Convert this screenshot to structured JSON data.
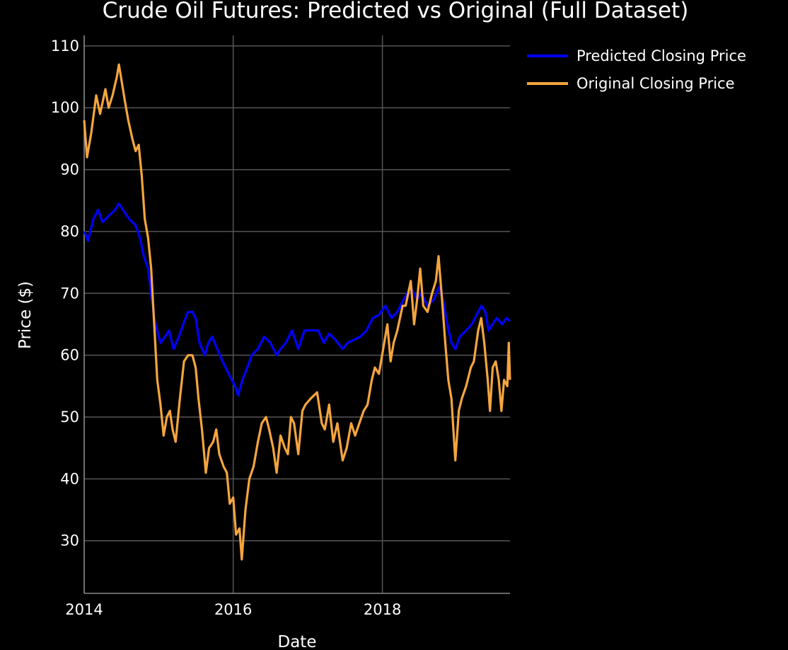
{
  "chart_data": {
    "type": "line",
    "title": "Crude Oil Futures: Predicted vs Original (Full Dataset)",
    "xlabel": "Date",
    "ylabel": "Price ($)",
    "x_range": [
      "2014-01-01",
      "2019-09-18"
    ],
    "y_range": [
      21.5,
      111.7
    ],
    "x_ticks": [
      "2014",
      "2016",
      "2018"
    ],
    "y_ticks": [
      30,
      40,
      50,
      60,
      70,
      80,
      90,
      100,
      110
    ],
    "grid": true,
    "legend_position": "top-right",
    "series": [
      {
        "name": "Predicted Closing Price",
        "color": "#0000ff",
        "points": [
          [
            "2014-01-01",
            80
          ],
          [
            "2014-01-20",
            78.5
          ],
          [
            "2014-02-15",
            82
          ],
          [
            "2014-03-10",
            83.5
          ],
          [
            "2014-04-01",
            81.5
          ],
          [
            "2014-05-01",
            82.5
          ],
          [
            "2014-06-01",
            83.5
          ],
          [
            "2014-06-20",
            84.5
          ],
          [
            "2014-07-10",
            83.5
          ],
          [
            "2014-08-10",
            82
          ],
          [
            "2014-09-10",
            81
          ],
          [
            "2014-10-01",
            79
          ],
          [
            "2014-10-20",
            76
          ],
          [
            "2014-11-10",
            74
          ],
          [
            "2014-11-25",
            70
          ],
          [
            "2014-12-10",
            66
          ],
          [
            "2014-12-25",
            64
          ],
          [
            "2015-01-10",
            62
          ],
          [
            "2015-02-01",
            63
          ],
          [
            "2015-02-20",
            64
          ],
          [
            "2015-03-15",
            61
          ],
          [
            "2015-04-10",
            63
          ],
          [
            "2015-05-01",
            65
          ],
          [
            "2015-05-25",
            67
          ],
          [
            "2015-06-15",
            67
          ],
          [
            "2015-07-01",
            66
          ],
          [
            "2015-07-20",
            62
          ],
          [
            "2015-08-15",
            60
          ],
          [
            "2015-09-01",
            62
          ],
          [
            "2015-09-20",
            63
          ],
          [
            "2015-10-15",
            61
          ],
          [
            "2015-11-10",
            59
          ],
          [
            "2015-12-10",
            57
          ],
          [
            "2016-01-10",
            55
          ],
          [
            "2016-01-25",
            53.5
          ],
          [
            "2016-02-15",
            56
          ],
          [
            "2016-03-10",
            58
          ],
          [
            "2016-04-01",
            60
          ],
          [
            "2016-05-01",
            61
          ],
          [
            "2016-06-01",
            63
          ],
          [
            "2016-07-01",
            62
          ],
          [
            "2016-08-01",
            60
          ],
          [
            "2016-08-20",
            61
          ],
          [
            "2016-09-15",
            62
          ],
          [
            "2016-10-15",
            64
          ],
          [
            "2016-11-15",
            61
          ],
          [
            "2016-12-15",
            64
          ],
          [
            "2017-01-15",
            64
          ],
          [
            "2017-02-20",
            64
          ],
          [
            "2017-03-20",
            62
          ],
          [
            "2017-04-15",
            63.5
          ],
          [
            "2017-05-15",
            62.5
          ],
          [
            "2017-06-20",
            61
          ],
          [
            "2017-07-15",
            62
          ],
          [
            "2017-08-15",
            62.5
          ],
          [
            "2017-09-15",
            63
          ],
          [
            "2017-10-15",
            64
          ],
          [
            "2017-11-15",
            66
          ],
          [
            "2017-12-15",
            66.5
          ],
          [
            "2018-01-15",
            68
          ],
          [
            "2018-02-15",
            66
          ],
          [
            "2018-03-15",
            67
          ],
          [
            "2018-04-15",
            69
          ],
          [
            "2018-05-20",
            71
          ],
          [
            "2018-06-20",
            69
          ],
          [
            "2018-07-10",
            70
          ],
          [
            "2018-08-10",
            68
          ],
          [
            "2018-09-10",
            69
          ],
          [
            "2018-10-05",
            71
          ],
          [
            "2018-10-25",
            69
          ],
          [
            "2018-11-15",
            65
          ],
          [
            "2018-12-05",
            62
          ],
          [
            "2018-12-25",
            61
          ],
          [
            "2019-01-15",
            63
          ],
          [
            "2019-02-15",
            64
          ],
          [
            "2019-03-15",
            65
          ],
          [
            "2019-04-15",
            67
          ],
          [
            "2019-05-01",
            68
          ],
          [
            "2019-05-20",
            67
          ],
          [
            "2019-06-05",
            64
          ],
          [
            "2019-06-25",
            65
          ],
          [
            "2019-07-15",
            66
          ],
          [
            "2019-08-10",
            65
          ],
          [
            "2019-09-01",
            66
          ],
          [
            "2019-09-18",
            65.5
          ]
        ]
      },
      {
        "name": "Original Closing Price",
        "color": "#f5a53e",
        "points": [
          [
            "2014-01-01",
            98
          ],
          [
            "2014-01-15",
            92
          ],
          [
            "2014-02-05",
            96
          ],
          [
            "2014-03-01",
            102
          ],
          [
            "2014-03-20",
            99
          ],
          [
            "2014-04-15",
            103
          ],
          [
            "2014-05-01",
            100
          ],
          [
            "2014-05-20",
            102
          ],
          [
            "2014-06-10",
            105
          ],
          [
            "2014-06-20",
            107
          ],
          [
            "2014-07-05",
            104
          ],
          [
            "2014-07-20",
            101
          ],
          [
            "2014-08-05",
            98
          ],
          [
            "2014-08-25",
            95
          ],
          [
            "2014-09-10",
            93
          ],
          [
            "2014-09-25",
            94
          ],
          [
            "2014-10-10",
            89
          ],
          [
            "2014-10-25",
            82
          ],
          [
            "2014-11-10",
            79
          ],
          [
            "2014-11-25",
            74
          ],
          [
            "2014-12-10",
            65
          ],
          [
            "2014-12-25",
            56
          ],
          [
            "2015-01-10",
            52
          ],
          [
            "2015-01-25",
            47
          ],
          [
            "2015-02-10",
            50
          ],
          [
            "2015-02-25",
            51
          ],
          [
            "2015-03-10",
            48
          ],
          [
            "2015-03-25",
            46
          ],
          [
            "2015-04-15",
            53
          ],
          [
            "2015-05-05",
            59
          ],
          [
            "2015-05-25",
            60
          ],
          [
            "2015-06-15",
            60
          ],
          [
            "2015-07-01",
            58
          ],
          [
            "2015-07-15",
            53
          ],
          [
            "2015-08-01",
            48
          ],
          [
            "2015-08-20",
            41
          ],
          [
            "2015-09-05",
            45
          ],
          [
            "2015-09-25",
            46
          ],
          [
            "2015-10-10",
            48
          ],
          [
            "2015-10-25",
            44
          ],
          [
            "2015-11-15",
            42
          ],
          [
            "2015-12-01",
            41
          ],
          [
            "2015-12-15",
            36
          ],
          [
            "2016-01-01",
            37
          ],
          [
            "2016-01-15",
            31
          ],
          [
            "2016-02-01",
            32
          ],
          [
            "2016-02-12",
            27
          ],
          [
            "2016-03-01",
            35
          ],
          [
            "2016-03-20",
            40
          ],
          [
            "2016-04-10",
            42
          ],
          [
            "2016-05-01",
            46
          ],
          [
            "2016-05-20",
            49
          ],
          [
            "2016-06-10",
            50
          ],
          [
            "2016-06-25",
            48
          ],
          [
            "2016-07-15",
            45
          ],
          [
            "2016-08-01",
            41
          ],
          [
            "2016-08-20",
            47
          ],
          [
            "2016-09-10",
            45
          ],
          [
            "2016-09-25",
            44
          ],
          [
            "2016-10-10",
            50
          ],
          [
            "2016-10-25",
            49
          ],
          [
            "2016-11-15",
            44
          ],
          [
            "2016-12-05",
            51
          ],
          [
            "2016-12-20",
            52
          ],
          [
            "2017-01-15",
            53
          ],
          [
            "2017-02-15",
            54
          ],
          [
            "2017-03-10",
            49
          ],
          [
            "2017-03-25",
            48
          ],
          [
            "2017-04-15",
            52
          ],
          [
            "2017-05-05",
            46
          ],
          [
            "2017-05-25",
            49
          ],
          [
            "2017-06-20",
            43
          ],
          [
            "2017-07-10",
            45
          ],
          [
            "2017-08-01",
            49
          ],
          [
            "2017-08-20",
            47
          ],
          [
            "2017-09-10",
            49
          ],
          [
            "2017-10-01",
            51
          ],
          [
            "2017-10-20",
            52
          ],
          [
            "2017-11-10",
            56
          ],
          [
            "2017-11-25",
            58
          ],
          [
            "2017-12-15",
            57
          ],
          [
            "2018-01-10",
            62
          ],
          [
            "2018-01-25",
            65
          ],
          [
            "2018-02-10",
            59
          ],
          [
            "2018-02-25",
            62
          ],
          [
            "2018-03-15",
            64
          ],
          [
            "2018-04-10",
            68
          ],
          [
            "2018-04-25",
            68
          ],
          [
            "2018-05-20",
            72
          ],
          [
            "2018-06-05",
            65
          ],
          [
            "2018-06-20",
            69
          ],
          [
            "2018-07-05",
            74
          ],
          [
            "2018-07-20",
            68
          ],
          [
            "2018-08-10",
            67
          ],
          [
            "2018-09-01",
            70
          ],
          [
            "2018-09-20",
            72
          ],
          [
            "2018-10-03",
            76
          ],
          [
            "2018-10-20",
            69
          ],
          [
            "2018-11-05",
            62
          ],
          [
            "2018-11-20",
            56
          ],
          [
            "2018-12-05",
            53
          ],
          [
            "2018-12-24",
            43
          ],
          [
            "2019-01-10",
            51
          ],
          [
            "2019-01-25",
            53
          ],
          [
            "2019-02-15",
            55
          ],
          [
            "2019-03-10",
            58
          ],
          [
            "2019-03-25",
            59
          ],
          [
            "2019-04-15",
            64
          ],
          [
            "2019-04-30",
            66
          ],
          [
            "2019-05-15",
            62
          ],
          [
            "2019-06-01",
            56
          ],
          [
            "2019-06-12",
            51
          ],
          [
            "2019-06-25",
            58
          ],
          [
            "2019-07-10",
            59
          ],
          [
            "2019-07-25",
            56
          ],
          [
            "2019-08-07",
            51
          ],
          [
            "2019-08-20",
            56
          ],
          [
            "2019-09-05",
            55
          ],
          [
            "2019-09-12",
            62
          ],
          [
            "2019-09-18",
            56
          ]
        ]
      }
    ]
  }
}
